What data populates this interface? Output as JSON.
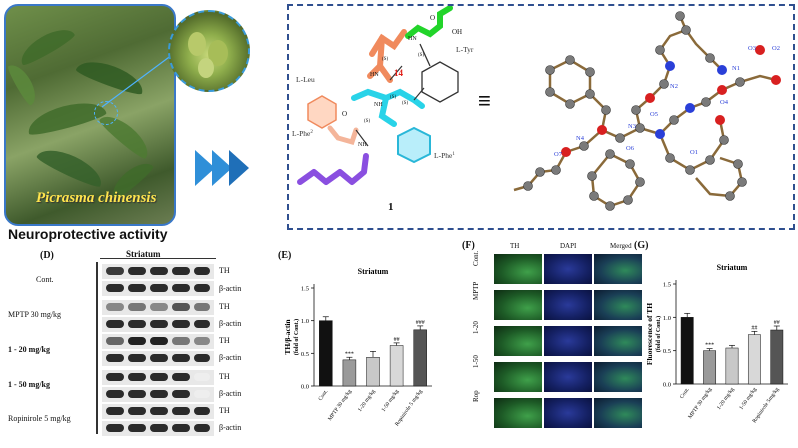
{
  "photo": {
    "caption": "Picrasma chinensis"
  },
  "structure": {
    "labels": {
      "leu": "L-Leu",
      "tyr": "L-Tyr",
      "phe2": "L-Phe",
      "phe1": "L-Phe",
      "phe2_sup": "2",
      "phe1_sup": "1",
      "ring_num": "14",
      "compound": "1",
      "s": "(S)",
      "oh": "OH",
      "o": "O",
      "nh": "NH",
      "hn": "HN"
    },
    "equiv": "≡",
    "crystal_atoms": [
      "O3",
      "O2",
      "N1",
      "N2",
      "O4",
      "O5",
      "N3",
      "N4",
      "O7",
      "O6",
      "O1"
    ]
  },
  "section_title": "Neuroprotective activity",
  "panelD": {
    "letter": "(D)",
    "header": "Striatum",
    "rows": [
      {
        "label": "Cont.",
        "p1": "TH",
        "p2": "β-actin"
      },
      {
        "label": "MPTP 30 mg/kg",
        "p1": "TH",
        "p2": "β-actin"
      },
      {
        "label": "1 - 20 mg/kg",
        "p1": "TH",
        "p2": "β-actin"
      },
      {
        "label": "1 - 50 mg/kg",
        "p1": "TH",
        "p2": "β-actin"
      },
      {
        "label": "Ropinirole 5 mg/kg",
        "p1": "TH",
        "p2": "β-actin"
      }
    ]
  },
  "panelE": {
    "letter": "(E)"
  },
  "panelF": {
    "letter": "(F)",
    "columns": [
      "TH",
      "DAPI",
      "Merged"
    ],
    "rows": [
      "Cont.",
      "MPTP",
      "1-20",
      "1-50",
      "Rop"
    ]
  },
  "panelG": {
    "letter": "(G)"
  },
  "chart_data": [
    {
      "type": "bar",
      "title": "Striatum",
      "ylabel": "TH/β-actin",
      "ylabel2": "(fold of Cont.)",
      "categories": [
        "Cont.",
        "MPTP 30 mg/kg",
        "1-20 mg/kg",
        "1-50 mg/kg",
        "Ropinirole 5 mg/kg"
      ],
      "values": [
        1.0,
        0.4,
        0.44,
        0.62,
        0.86
      ],
      "errors": [
        0.06,
        0.04,
        0.09,
        0.04,
        0.06
      ],
      "annotations": [
        "",
        "***",
        "",
        "##",
        "###"
      ],
      "ylim": [
        0,
        1.5
      ],
      "yticks": [
        "0.0",
        "0.5",
        "1.0",
        "1.5"
      ],
      "colors": [
        "#111111",
        "#9a9a9a",
        "#c8c8c8",
        "#d8d8d8",
        "#555555"
      ]
    },
    {
      "type": "bar",
      "title": "Striatum",
      "ylabel": "Fluorescence of TH",
      "ylabel2": "(fold of Cont.)",
      "categories": [
        "Cont.",
        "MPTP 30 mg/kg",
        "1-20 mg/kg",
        "1-50 mg/kg",
        "Ropinirole 5mg/kg"
      ],
      "values": [
        1.0,
        0.5,
        0.54,
        0.74,
        0.81
      ],
      "errors": [
        0.06,
        0.03,
        0.04,
        0.05,
        0.06
      ],
      "annotations": [
        "",
        "***",
        "",
        "##",
        "##"
      ],
      "ylim": [
        0,
        1.5
      ],
      "yticks": [
        "0.0",
        "0.5",
        "1.0",
        "1.5"
      ],
      "colors": [
        "#111111",
        "#9a9a9a",
        "#c8c8c8",
        "#d8d8d8",
        "#555555"
      ]
    }
  ]
}
